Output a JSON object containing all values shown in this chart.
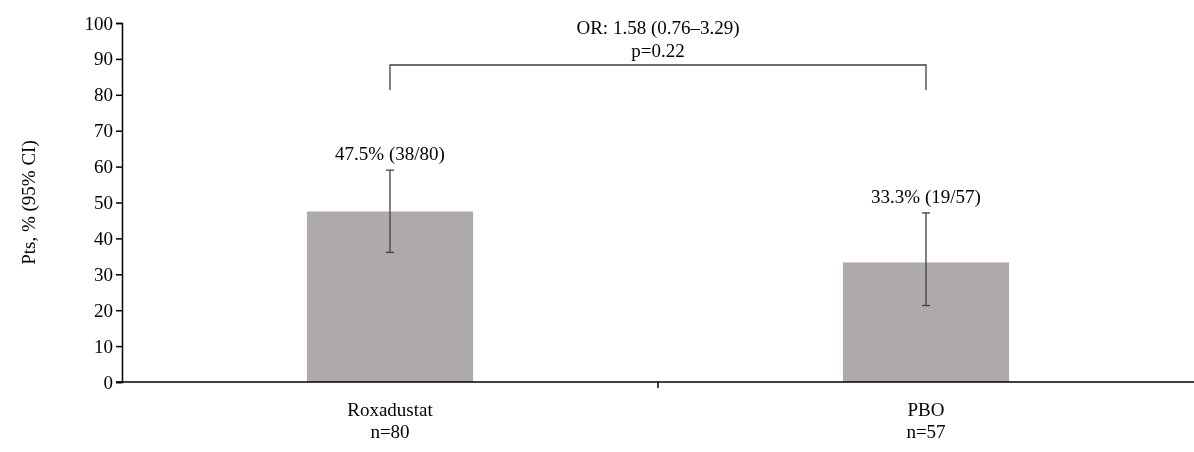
{
  "chart_data": {
    "type": "bar",
    "ylabel": "Pts, % (95% CI)",
    "categories": [
      "Roxadustat\nn=80",
      "PBO\nn=57"
    ],
    "values": [
      47.5,
      33.3
    ],
    "color": "#aeaaaa",
    "errors": [
      [
        36.1,
        59.0
      ],
      [
        21.3,
        47.1
      ]
    ],
    "value_labels": [
      "47.5% (38/80)",
      "33.3% (19/57)"
    ],
    "ylim": [
      0,
      100
    ],
    "yticks": [
      0,
      10,
      20,
      30,
      40,
      50,
      60,
      70,
      80,
      90,
      100
    ],
    "annotations": [
      "OR: 1.58 (0.76–3.29)",
      "p=0.22"
    ]
  }
}
